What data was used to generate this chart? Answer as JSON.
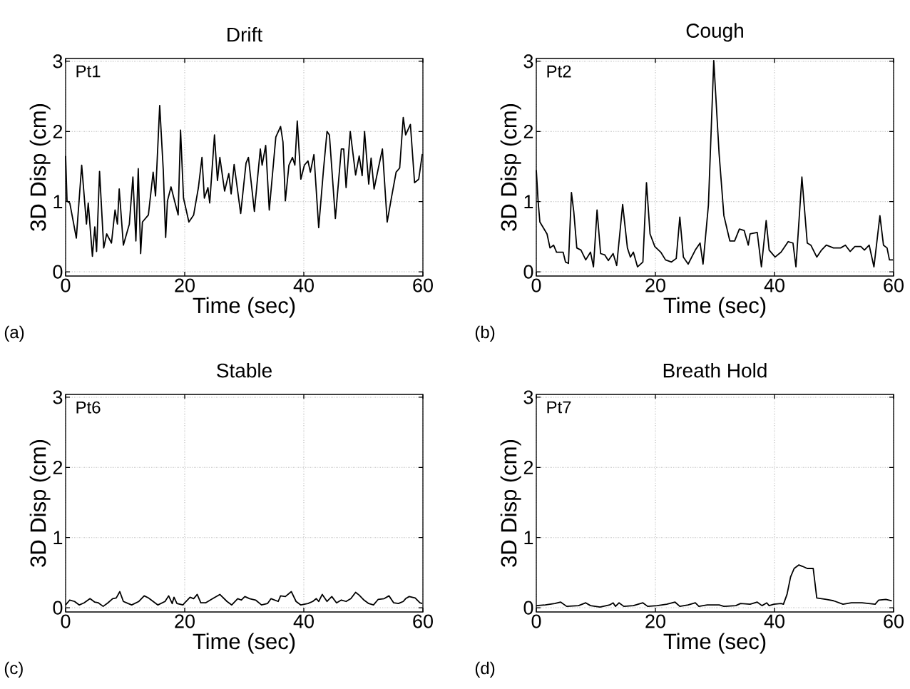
{
  "chart_data": [
    {
      "type": "line",
      "title": "Drift",
      "xlabel": "Time (sec)",
      "ylabel": "3D Disp (cm)",
      "annotations": [
        "Pt1",
        "(a)"
      ],
      "xlim": [
        0,
        60
      ],
      "ylim": [
        -0.06,
        3.04
      ],
      "xticks": [
        0,
        20,
        40,
        60
      ],
      "yticks": [
        0,
        1,
        2,
        3
      ],
      "grid": true,
      "color": "#000000",
      "x": [
        0,
        0.24,
        0.7,
        1.3,
        1.8,
        2.7,
        3.5,
        3.8,
        4.5,
        4.9,
        5.2,
        5.7,
        6.4,
        6.9,
        7.7,
        8.3,
        8.7,
        9.0,
        9.7,
        10.7,
        11.3,
        11.8,
        12.2,
        12.6,
        12.9,
        13.9,
        14.7,
        15.1,
        15.8,
        16.4,
        16.8,
        17.1,
        17.7,
        18.3,
        18.9,
        19.3,
        19.8,
        20.7,
        21.5,
        22.3,
        22.9,
        23.3,
        23.9,
        24.2,
        25.0,
        25.5,
        25.9,
        26.7,
        27.4,
        27.8,
        28.3,
        29.4,
        30.3,
        30.7,
        31.7,
        32.7,
        33.0,
        33.6,
        34.2,
        35.3,
        36.1,
        36.5,
        36.9,
        37.5,
        38.1,
        38.5,
        38.9,
        39.5,
        40.1,
        40.7,
        41.1,
        41.7,
        42.5,
        43.3,
        43.9,
        44.3,
        45.3,
        46.3,
        46.7,
        47.1,
        47.8,
        48.7,
        49.3,
        49.8,
        50.2,
        50.9,
        51.3,
        51.8,
        52.5,
        53.2,
        54.0,
        54.7,
        55.5,
        56.1,
        56.7,
        57.1,
        57.9,
        58.6,
        59.3,
        59.9
      ],
      "values": [
        1.65,
        1.01,
        0.98,
        0.71,
        0.48,
        1.52,
        0.68,
        0.98,
        0.22,
        0.64,
        0.29,
        1.43,
        0.34,
        0.54,
        0.41,
        0.88,
        0.68,
        1.18,
        0.38,
        0.68,
        1.35,
        0.44,
        1.47,
        0.26,
        0.71,
        0.81,
        1.42,
        1.08,
        2.37,
        1.45,
        0.49,
        1.01,
        1.21,
        1.01,
        0.81,
        2.02,
        1.05,
        0.71,
        0.81,
        1.2,
        1.63,
        1.05,
        1.2,
        0.98,
        1.95,
        1.3,
        1.63,
        1.15,
        1.4,
        1.11,
        1.53,
        0.83,
        1.55,
        1.63,
        0.86,
        1.75,
        1.52,
        1.8,
        0.88,
        1.92,
        2.07,
        1.85,
        1.01,
        1.52,
        1.63,
        1.52,
        2.15,
        1.32,
        1.52,
        1.58,
        1.42,
        1.67,
        0.63,
        1.45,
        2.0,
        1.95,
        0.76,
        1.75,
        1.75,
        1.2,
        2.0,
        1.38,
        1.65,
        1.37,
        2.0,
        1.25,
        1.62,
        1.18,
        1.47,
        1.75,
        0.71,
        1.05,
        1.42,
        1.48,
        2.2,
        1.95,
        2.1,
        1.27,
        1.32,
        1.68
      ]
    },
    {
      "type": "line",
      "title": "Cough",
      "xlabel": "Time (sec)",
      "ylabel": "3D Disp (cm)",
      "annotations": [
        "Pt2",
        "(b)"
      ],
      "xlim": [
        0,
        60
      ],
      "ylim": [
        -0.06,
        3.04
      ],
      "xticks": [
        0,
        20,
        40,
        60
      ],
      "yticks": [
        0,
        1,
        2,
        3
      ],
      "grid": true,
      "color": "#000000",
      "x": [
        0,
        0.3,
        0.6,
        1.3,
        1.8,
        2.3,
        2.9,
        3.4,
        4.5,
        4.9,
        5.4,
        5.9,
        6.3,
        6.8,
        7.5,
        8.3,
        9.1,
        9.6,
        10.2,
        10.8,
        11.5,
        12.1,
        12.9,
        13.5,
        14.5,
        15.3,
        15.8,
        16.3,
        17.0,
        17.9,
        18.5,
        19.1,
        19.9,
        20.9,
        21.7,
        22.7,
        23.5,
        24.1,
        24.7,
        25.5,
        26.7,
        27.5,
        28.0,
        28.9,
        29.8,
        30.7,
        31.5,
        32.5,
        33.3,
        34.1,
        34.9,
        35.6,
        35.9,
        37.1,
        37.8,
        38.6,
        39.1,
        40.1,
        41.1,
        42.3,
        43.1,
        43.6,
        44.6,
        45.5,
        46.1,
        47.1,
        47.9,
        48.7,
        49.9,
        51.1,
        51.9,
        52.7,
        53.5,
        54.5,
        55.1,
        55.9,
        56.7,
        57.7,
        58.3,
        58.9,
        59.3,
        59.9
      ],
      "values": [
        1.45,
        1.01,
        0.71,
        0.61,
        0.54,
        0.34,
        0.38,
        0.28,
        0.28,
        0.14,
        0.12,
        1.13,
        0.85,
        0.34,
        0.31,
        0.17,
        0.28,
        0.07,
        0.88,
        0.26,
        0.24,
        0.16,
        0.26,
        0.09,
        0.96,
        0.34,
        0.21,
        0.28,
        0.07,
        0.14,
        1.27,
        0.54,
        0.36,
        0.28,
        0.17,
        0.14,
        0.19,
        0.78,
        0.21,
        0.11,
        0.31,
        0.41,
        0.11,
        0.95,
        3.01,
        1.68,
        0.8,
        0.44,
        0.44,
        0.61,
        0.59,
        0.38,
        0.54,
        0.56,
        0.07,
        0.73,
        0.31,
        0.21,
        0.28,
        0.43,
        0.41,
        0.07,
        1.35,
        0.41,
        0.38,
        0.21,
        0.31,
        0.38,
        0.34,
        0.34,
        0.38,
        0.29,
        0.36,
        0.36,
        0.31,
        0.38,
        0.07,
        0.8,
        0.38,
        0.34,
        0.17,
        0.17
      ]
    },
    {
      "type": "line",
      "title": "Stable",
      "xlabel": "Time (sec)",
      "ylabel": "3D Disp (cm)",
      "annotations": [
        "Pt6",
        "(c)"
      ],
      "xlim": [
        0,
        60
      ],
      "ylim": [
        -0.06,
        3.04
      ],
      "xticks": [
        0,
        20,
        40,
        60
      ],
      "yticks": [
        0,
        1,
        2,
        3
      ],
      "grid": true,
      "color": "#000000",
      "x": [
        0,
        0.7,
        1.5,
        2.3,
        3.1,
        4.1,
        4.9,
        5.5,
        6.3,
        7.1,
        7.9,
        8.5,
        9.1,
        9.7,
        10.5,
        11.1,
        12.3,
        13.2,
        13.9,
        14.7,
        15.5,
        16.7,
        17.3,
        17.9,
        18.2,
        18.7,
        19.7,
        19.9,
        20.9,
        21.5,
        22.1,
        22.7,
        23.5,
        24.7,
        25.9,
        27.1,
        27.9,
        28.9,
        29.5,
        30.1,
        30.9,
        31.9,
        32.9,
        33.9,
        34.5,
        35.7,
        36.1,
        36.9,
        37.9,
        38.7,
        39.5,
        40.7,
        41.5,
        42.1,
        42.5,
        43.1,
        43.9,
        44.7,
        45.5,
        46.3,
        47.1,
        47.9,
        48.7,
        49.3,
        50.1,
        50.9,
        51.7,
        52.5,
        53.5,
        54.3,
        55.1,
        55.9,
        56.7,
        57.1,
        57.7,
        58.7,
        59.5,
        59.9
      ],
      "values": [
        0.04,
        0.11,
        0.09,
        0.04,
        0.07,
        0.13,
        0.08,
        0.07,
        0.02,
        0.07,
        0.13,
        0.14,
        0.23,
        0.09,
        0.06,
        0.04,
        0.09,
        0.17,
        0.14,
        0.09,
        0.04,
        0.09,
        0.17,
        0.06,
        0.15,
        0.06,
        0.04,
        0.06,
        0.15,
        0.13,
        0.19,
        0.07,
        0.07,
        0.13,
        0.19,
        0.09,
        0.04,
        0.13,
        0.11,
        0.16,
        0.13,
        0.11,
        0.04,
        0.06,
        0.13,
        0.09,
        0.17,
        0.16,
        0.23,
        0.09,
        0.04,
        0.06,
        0.09,
        0.13,
        0.09,
        0.19,
        0.09,
        0.16,
        0.07,
        0.11,
        0.09,
        0.13,
        0.22,
        0.18,
        0.11,
        0.06,
        0.04,
        0.12,
        0.13,
        0.17,
        0.07,
        0.06,
        0.09,
        0.13,
        0.16,
        0.14,
        0.07,
        0.06
      ]
    },
    {
      "type": "line",
      "title": "Breath Hold",
      "xlabel": "Time (sec)",
      "ylabel": "3D Disp (cm)",
      "annotations": [
        "Pt7",
        "(d)"
      ],
      "xlim": [
        0,
        60
      ],
      "ylim": [
        -0.06,
        3.04
      ],
      "xticks": [
        0,
        20,
        40,
        60
      ],
      "yticks": [
        0,
        1,
        2,
        3
      ],
      "grid": true,
      "color": "#000000",
      "x": [
        0,
        1.5,
        3.1,
        4.1,
        5.1,
        7.1,
        8.3,
        9.1,
        10.7,
        12.3,
        12.9,
        13.3,
        13.9,
        14.7,
        16.3,
        17.9,
        18.7,
        20.3,
        21.9,
        23.3,
        24.1,
        25.5,
        26.7,
        27.3,
        28.7,
        30.7,
        31.5,
        33.5,
        34.3,
        35.9,
        37.1,
        37.9,
        38.7,
        39.1,
        39.9,
        41.1,
        41.5,
        42.1,
        42.7,
        43.3,
        44.1,
        44.7,
        45.5,
        46.5,
        47.1,
        48.7,
        49.9,
        51.5,
        52.9,
        54.7,
        56.9,
        57.5,
        58.7,
        59.7
      ],
      "values": [
        0.03,
        0.04,
        0.06,
        0.08,
        0.02,
        0.03,
        0.07,
        0.03,
        0.01,
        0.04,
        0.07,
        0.02,
        0.07,
        0.02,
        0.03,
        0.07,
        0.02,
        0.03,
        0.05,
        0.08,
        0.02,
        0.04,
        0.07,
        0.02,
        0.04,
        0.04,
        0.02,
        0.03,
        0.06,
        0.05,
        0.08,
        0.03,
        0.07,
        0.03,
        0.05,
        0.06,
        0.05,
        0.19,
        0.44,
        0.56,
        0.61,
        0.59,
        0.56,
        0.56,
        0.14,
        0.12,
        0.1,
        0.05,
        0.07,
        0.07,
        0.05,
        0.11,
        0.12,
        0.1
      ]
    }
  ]
}
